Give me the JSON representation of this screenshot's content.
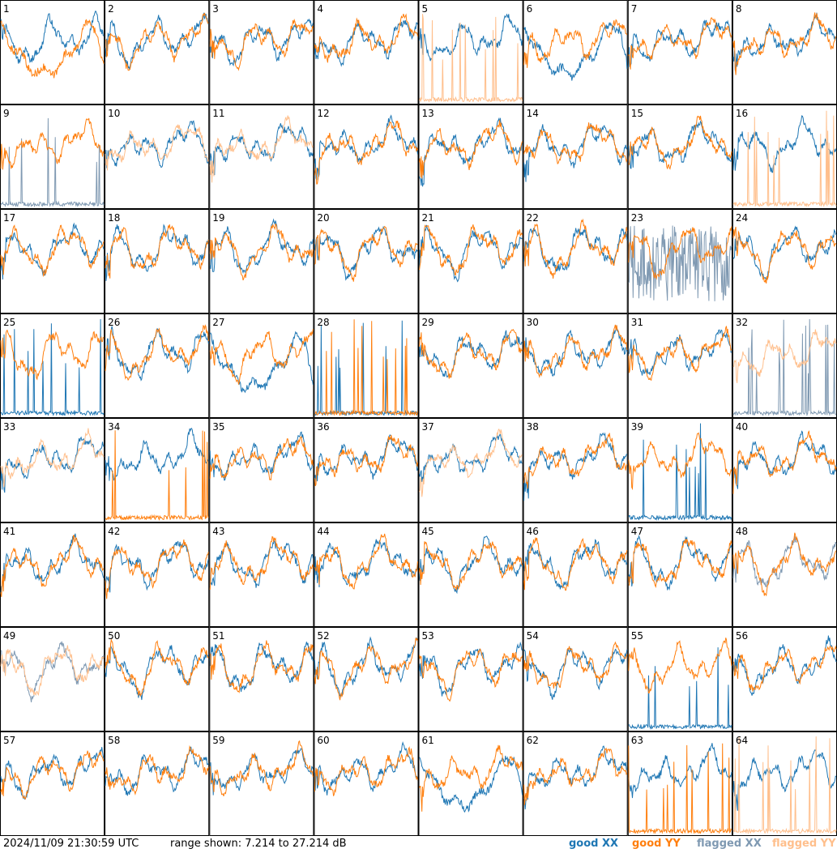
{
  "footer": {
    "timestamp": "2024/11/09 21:30:59 UTC",
    "range_text": "range shown: 7.214 to 27.214 dB"
  },
  "chart_data": {
    "type": "line",
    "layout": "small multiples, 8 columns x 8 rows",
    "ylim": [
      7.214,
      27.214
    ],
    "yunit": "dB",
    "colors": {
      "good_xx": "#1f77b4",
      "good_yy": "#ff7f0e",
      "flagged_xx": "#7f99b2",
      "flagged_yy": "#ffbf8c"
    },
    "legend": [
      {
        "key": "good_xx",
        "prefix": "good ",
        "label": "XX"
      },
      {
        "key": "good_yy",
        "prefix": "good ",
        "label": "YY"
      },
      {
        "key": "flagged_xx",
        "prefix": "flagged ",
        "label": "XX"
      },
      {
        "key": "flagged_yy",
        "prefix": "flagged ",
        "label": "YY"
      }
    ],
    "tiles": [
      {
        "id": "1",
        "xx": "good",
        "yy": "good",
        "yy_shape": "deep"
      },
      {
        "id": "2",
        "xx": "good",
        "yy": "good"
      },
      {
        "id": "3",
        "xx": "good",
        "yy": "good"
      },
      {
        "id": "4",
        "xx": "good",
        "yy": "good"
      },
      {
        "id": "5",
        "xx": "good",
        "yy": "flagged",
        "yy_shape": "spiky"
      },
      {
        "id": "6",
        "xx": "good",
        "yy": "good",
        "xx_shape": "deep"
      },
      {
        "id": "7",
        "xx": "good",
        "yy": "good"
      },
      {
        "id": "8",
        "xx": "good",
        "yy": "good"
      },
      {
        "id": "9",
        "xx": "flagged",
        "yy": "good",
        "xx_shape": "spiky"
      },
      {
        "id": "10",
        "xx": "good",
        "yy": "flagged"
      },
      {
        "id": "11",
        "xx": "good",
        "yy": "flagged"
      },
      {
        "id": "12",
        "xx": "good",
        "yy": "good"
      },
      {
        "id": "13",
        "xx": "good",
        "yy": "good"
      },
      {
        "id": "14",
        "xx": "good",
        "yy": "good"
      },
      {
        "id": "15",
        "xx": "good",
        "yy": "good"
      },
      {
        "id": "16",
        "xx": "good",
        "yy": "flagged",
        "yy_shape": "spiky"
      },
      {
        "id": "17",
        "xx": "good",
        "yy": "good"
      },
      {
        "id": "18",
        "xx": "good",
        "yy": "good"
      },
      {
        "id": "19",
        "xx": "good",
        "yy": "good"
      },
      {
        "id": "20",
        "xx": "good",
        "yy": "good"
      },
      {
        "id": "21",
        "xx": "good",
        "yy": "good"
      },
      {
        "id": "22",
        "xx": "good",
        "yy": "good"
      },
      {
        "id": "23",
        "xx": "flagged",
        "yy": "good",
        "xx_shape": "noisy"
      },
      {
        "id": "24",
        "xx": "good",
        "yy": "good"
      },
      {
        "id": "25",
        "xx": "good",
        "yy": "good",
        "xx_shape": "spiky"
      },
      {
        "id": "26",
        "xx": "good",
        "yy": "good"
      },
      {
        "id": "27",
        "xx": "good",
        "yy": "good",
        "xx_shape": "deep"
      },
      {
        "id": "28",
        "xx": "good",
        "yy": "good",
        "xx_shape": "spiky",
        "yy_shape": "spiky"
      },
      {
        "id": "29",
        "xx": "good",
        "yy": "good"
      },
      {
        "id": "30",
        "xx": "good",
        "yy": "good"
      },
      {
        "id": "31",
        "xx": "good",
        "yy": "good"
      },
      {
        "id": "32",
        "xx": "flagged",
        "yy": "flagged",
        "xx_shape": "spiky"
      },
      {
        "id": "33",
        "xx": "good",
        "yy": "flagged"
      },
      {
        "id": "34",
        "xx": "good",
        "yy": "good",
        "yy_shape": "spiky"
      },
      {
        "id": "35",
        "xx": "good",
        "yy": "good"
      },
      {
        "id": "36",
        "xx": "good",
        "yy": "good"
      },
      {
        "id": "37",
        "xx": "good",
        "yy": "flagged"
      },
      {
        "id": "38",
        "xx": "good",
        "yy": "good"
      },
      {
        "id": "39",
        "xx": "good",
        "yy": "good",
        "xx_shape": "spiky"
      },
      {
        "id": "40",
        "xx": "good",
        "yy": "good"
      },
      {
        "id": "41",
        "xx": "good",
        "yy": "good"
      },
      {
        "id": "42",
        "xx": "good",
        "yy": "good"
      },
      {
        "id": "43",
        "xx": "good",
        "yy": "good"
      },
      {
        "id": "44",
        "xx": "good",
        "yy": "good"
      },
      {
        "id": "45",
        "xx": "good",
        "yy": "good"
      },
      {
        "id": "46",
        "xx": "good",
        "yy": "good"
      },
      {
        "id": "47",
        "xx": "good",
        "yy": "good"
      },
      {
        "id": "48",
        "xx": "flagged",
        "yy": "good"
      },
      {
        "id": "49",
        "xx": "flagged",
        "yy": "flagged"
      },
      {
        "id": "50",
        "xx": "good",
        "yy": "good"
      },
      {
        "id": "51",
        "xx": "good",
        "yy": "good"
      },
      {
        "id": "52",
        "xx": "good",
        "yy": "good"
      },
      {
        "id": "53",
        "xx": "good",
        "yy": "good"
      },
      {
        "id": "54",
        "xx": "good",
        "yy": "good"
      },
      {
        "id": "55",
        "xx": "good",
        "yy": "good",
        "xx_shape": "spiky"
      },
      {
        "id": "56",
        "xx": "good",
        "yy": "good"
      },
      {
        "id": "57",
        "xx": "good",
        "yy": "good"
      },
      {
        "id": "58",
        "xx": "good",
        "yy": "good"
      },
      {
        "id": "59",
        "xx": "good",
        "yy": "good"
      },
      {
        "id": "60",
        "xx": "good",
        "yy": "good"
      },
      {
        "id": "61",
        "xx": "good",
        "yy": "good",
        "xx_shape": "deep"
      },
      {
        "id": "62",
        "xx": "good",
        "yy": "good"
      },
      {
        "id": "63",
        "xx": "good",
        "yy": "good",
        "yy_shape": "spiky"
      },
      {
        "id": "64",
        "xx": "good",
        "yy": "flagged",
        "yy_shape": "spiky"
      }
    ]
  }
}
